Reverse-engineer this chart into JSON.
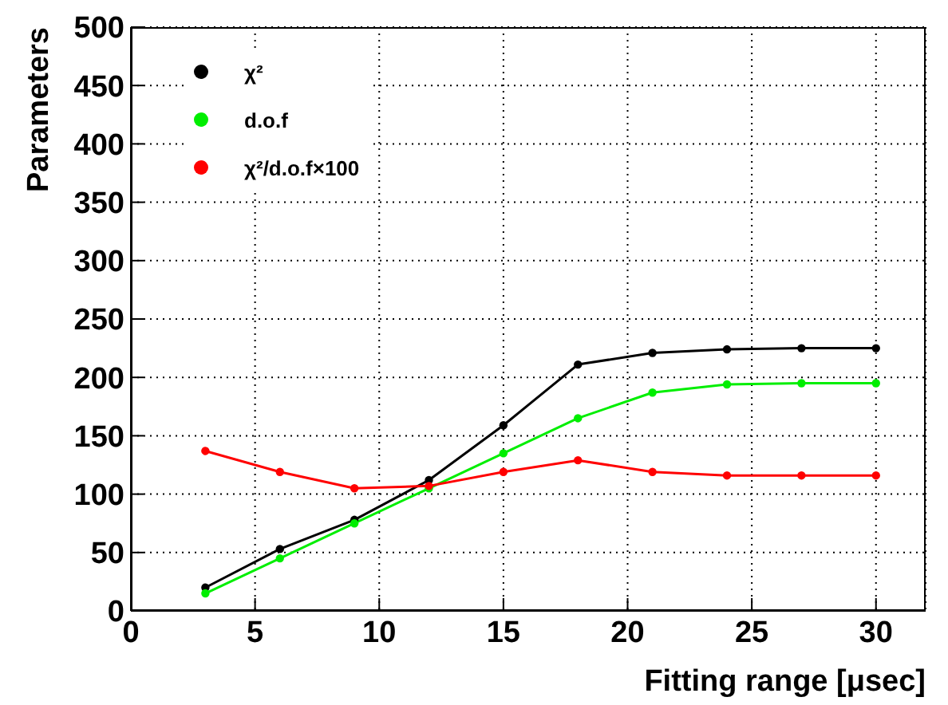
{
  "chart_data": {
    "type": "line",
    "xlabel": "Fitting range [μsec]",
    "ylabel": "Parameters",
    "x": [
      3,
      6,
      9,
      12,
      15,
      18,
      21,
      24,
      27,
      30
    ],
    "series": [
      {
        "name": "χ²",
        "color": "#000000",
        "values": [
          20,
          53,
          78,
          112,
          159,
          211,
          221,
          224,
          225,
          225
        ]
      },
      {
        "name": "d.o.f",
        "color": "#00ee00",
        "values": [
          15,
          45,
          75,
          105,
          135,
          165,
          187,
          194,
          195,
          195
        ]
      },
      {
        "name": "χ²/d.o.f×100",
        "color": "#ff0000",
        "values": [
          137,
          119,
          105,
          107,
          119,
          129,
          119,
          116,
          116,
          116
        ]
      }
    ],
    "xlim": [
      0,
      32
    ],
    "xticks": [
      0,
      5,
      10,
      15,
      20,
      25,
      30
    ],
    "ylim": [
      0,
      500
    ],
    "yticks": [
      0,
      50,
      100,
      150,
      200,
      250,
      300,
      350,
      400,
      450,
      500
    ],
    "grid": true,
    "legend": "top left",
    "marker": "circle",
    "line_style": "solid"
  }
}
